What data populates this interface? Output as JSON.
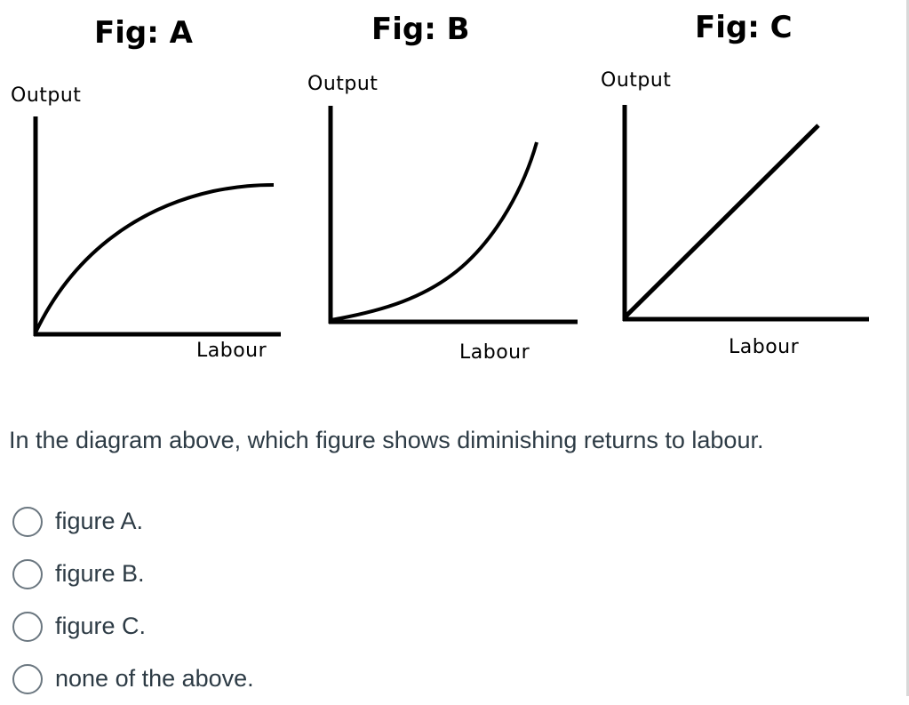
{
  "figures": [
    {
      "title": "Fig: A",
      "ylabel": "Output",
      "xlabel": "Labour"
    },
    {
      "title": "Fig: B",
      "ylabel": "Output",
      "xlabel": "Labour"
    },
    {
      "title": "Fig: C",
      "ylabel": "Output",
      "xlabel": "Labour"
    }
  ],
  "question": "In the diagram above, which figure shows diminishing returns to labour.",
  "options": [
    {
      "label": "figure A.",
      "selected": false
    },
    {
      "label": "figure B.",
      "selected": false
    },
    {
      "label": "figure C.",
      "selected": false
    },
    {
      "label": "none of the above.",
      "selected": false
    }
  ]
}
